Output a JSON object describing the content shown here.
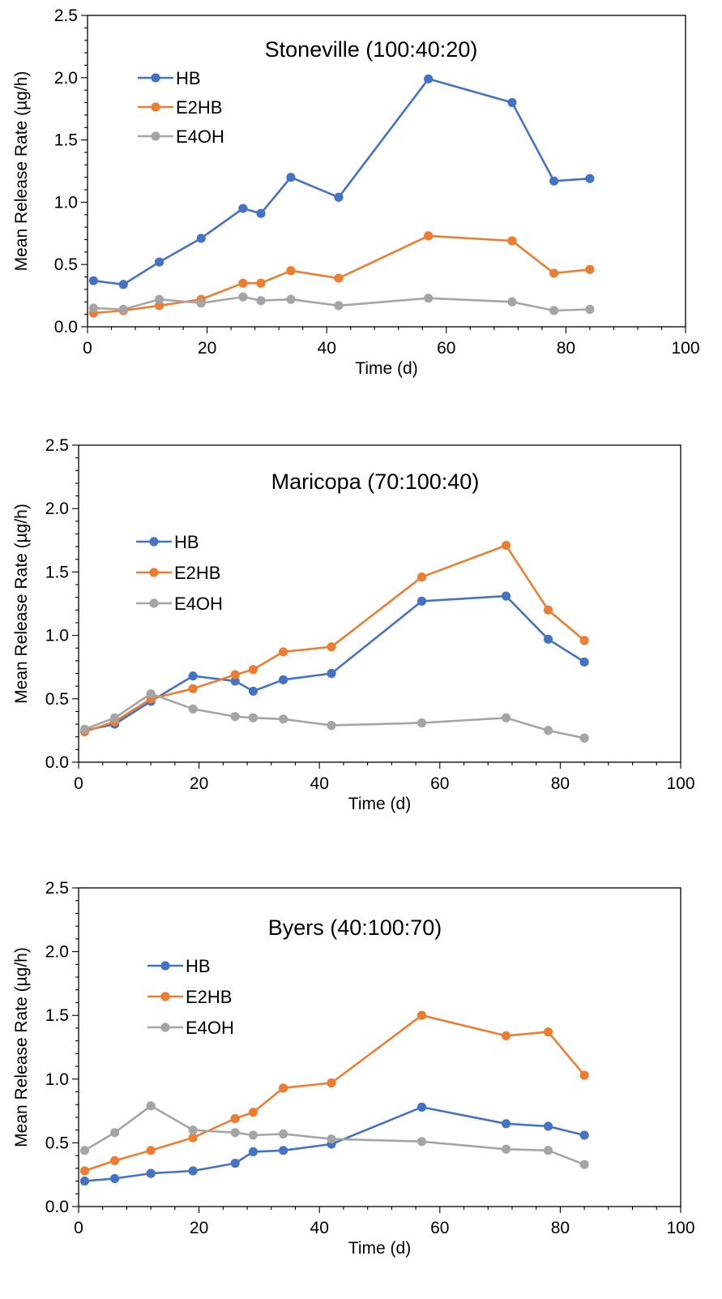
{
  "colors": {
    "HB": "#4472C4",
    "E2HB": "#ED7D31",
    "E4OH": "#A5A5A5"
  },
  "chart_data": [
    {
      "type": "line",
      "title": "Stoneville (100:40:20)",
      "xlabel": "Time (d)",
      "ylabel": "Mean Release Rate (µg/h)",
      "xlim": [
        0,
        100
      ],
      "ylim": [
        0,
        2.5
      ],
      "xticks": [
        "0",
        "20",
        "40",
        "60",
        "80",
        "100"
      ],
      "yticks": [
        "0.0",
        "0.5",
        "1.0",
        "1.5",
        "2.0",
        "2.5"
      ],
      "grid": false,
      "legend_position": "top-left",
      "series": [
        {
          "name": "HB",
          "x": [
            1,
            6,
            12,
            19,
            26,
            29,
            34,
            42,
            57,
            71,
            78,
            84
          ],
          "y": [
            0.37,
            0.34,
            0.52,
            0.71,
            0.95,
            0.91,
            1.2,
            1.04,
            1.99,
            1.8,
            1.17,
            1.19
          ]
        },
        {
          "name": "E2HB",
          "x": [
            1,
            6,
            12,
            19,
            26,
            29,
            34,
            42,
            57,
            71,
            78,
            84
          ],
          "y": [
            0.11,
            0.13,
            0.17,
            0.22,
            0.35,
            0.35,
            0.45,
            0.39,
            0.73,
            0.69,
            0.43,
            0.46
          ]
        },
        {
          "name": "E4OH",
          "x": [
            1,
            6,
            12,
            19,
            26,
            29,
            34,
            42,
            57,
            71,
            78,
            84
          ],
          "y": [
            0.15,
            0.14,
            0.22,
            0.19,
            0.24,
            0.21,
            0.22,
            0.17,
            0.23,
            0.2,
            0.13,
            0.14
          ]
        }
      ]
    },
    {
      "type": "line",
      "title": "Maricopa (70:100:40)",
      "xlabel": "Time (d)",
      "ylabel": "Mean Release Rate (µg/h)",
      "xlim": [
        0,
        100
      ],
      "ylim": [
        0,
        2.5
      ],
      "xticks": [
        "0",
        "20",
        "40",
        "60",
        "80",
        "100"
      ],
      "yticks": [
        "0.0",
        "0.5",
        "1.0",
        "1.5",
        "2.0",
        "2.5"
      ],
      "grid": false,
      "legend_position": "left",
      "series": [
        {
          "name": "HB",
          "x": [
            1,
            6,
            12,
            19,
            26,
            29,
            34,
            42,
            57,
            71,
            78,
            84
          ],
          "y": [
            0.25,
            0.3,
            0.48,
            0.68,
            0.64,
            0.56,
            0.65,
            0.7,
            1.27,
            1.31,
            0.97,
            0.79
          ]
        },
        {
          "name": "E2HB",
          "x": [
            1,
            6,
            12,
            19,
            26,
            29,
            34,
            42,
            57,
            71,
            78,
            84
          ],
          "y": [
            0.24,
            0.32,
            0.5,
            0.58,
            0.69,
            0.73,
            0.87,
            0.91,
            1.46,
            1.71,
            1.2,
            0.96
          ]
        },
        {
          "name": "E4OH",
          "x": [
            1,
            6,
            12,
            19,
            26,
            29,
            34,
            42,
            57,
            71,
            78,
            84
          ],
          "y": [
            0.26,
            0.35,
            0.54,
            0.42,
            0.36,
            0.35,
            0.34,
            0.29,
            0.31,
            0.35,
            0.25,
            0.19
          ]
        }
      ]
    },
    {
      "type": "line",
      "title": "Byers (40:100:70)",
      "xlabel": "Time (d)",
      "ylabel": "Mean Release Rate (µg/h)",
      "xlim": [
        0,
        100
      ],
      "ylim": [
        0,
        2.5
      ],
      "xticks": [
        "0",
        "20",
        "40",
        "60",
        "80",
        "100"
      ],
      "yticks": [
        "0.0",
        "0.5",
        "1.0",
        "1.5",
        "2.0",
        "2.5"
      ],
      "grid": false,
      "legend_position": "left",
      "series": [
        {
          "name": "HB",
          "x": [
            1,
            6,
            12,
            19,
            26,
            29,
            34,
            42,
            57,
            71,
            78,
            84
          ],
          "y": [
            0.2,
            0.22,
            0.26,
            0.28,
            0.34,
            0.43,
            0.44,
            0.49,
            0.78,
            0.65,
            0.63,
            0.56
          ]
        },
        {
          "name": "E2HB",
          "x": [
            1,
            6,
            12,
            19,
            26,
            29,
            34,
            42,
            57,
            71,
            78,
            84
          ],
          "y": [
            0.28,
            0.36,
            0.44,
            0.54,
            0.69,
            0.74,
            0.93,
            0.97,
            1.5,
            1.34,
            1.37,
            1.03
          ]
        },
        {
          "name": "E4OH",
          "x": [
            1,
            6,
            12,
            19,
            26,
            29,
            34,
            42,
            57,
            71,
            78,
            84
          ],
          "y": [
            0.44,
            0.58,
            0.79,
            0.6,
            0.58,
            0.56,
            0.57,
            0.53,
            0.51,
            0.45,
            0.44,
            0.33
          ]
        }
      ]
    }
  ]
}
